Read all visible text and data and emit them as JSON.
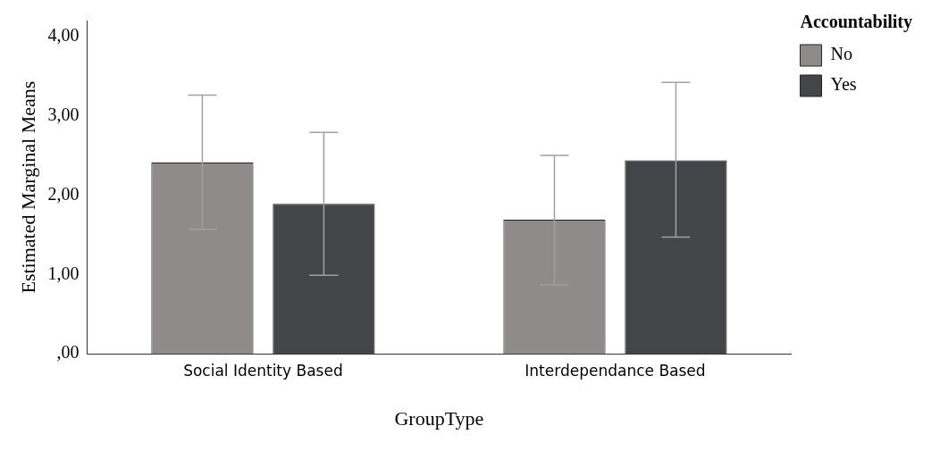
{
  "chart_data": {
    "type": "bar",
    "xlabel": "GroupType",
    "ylabel": "Estimated Marginal Means",
    "legend_title": "Accountability",
    "categories": [
      "Social Identity Based",
      "Interdependance Based"
    ],
    "series": [
      {
        "name": "No",
        "color": "#8f8b8a",
        "values": [
          2.41,
          1.69
        ],
        "errors": [
          [
            1.57,
            3.26
          ],
          [
            0.87,
            2.5
          ]
        ]
      },
      {
        "name": "Yes",
        "color": "#444548",
        "values": [
          1.89,
          2.44
        ],
        "errors": [
          [
            0.99,
            2.79
          ],
          [
            1.47,
            3.42
          ]
        ]
      }
    ],
    "ylim": [
      0,
      4.2
    ],
    "yticks": [
      {
        "value": 0,
        "label": ",00"
      },
      {
        "value": 1,
        "label": "1,00"
      },
      {
        "value": 2,
        "label": "2,00"
      },
      {
        "value": 3,
        "label": "3,00"
      },
      {
        "value": 4,
        "label": "4,00"
      }
    ],
    "grid": false,
    "legend": "top right"
  }
}
